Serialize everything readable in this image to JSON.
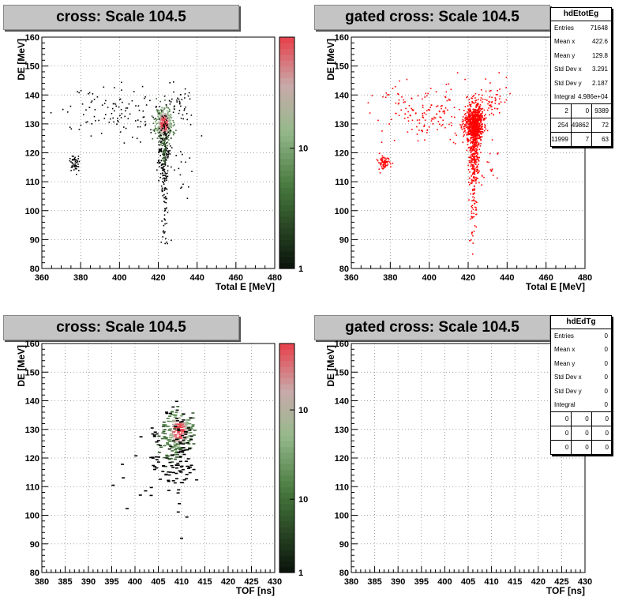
{
  "chart_data": [
    {
      "type": "heatmap",
      "title": "cross: Scale 104.5",
      "xlabel": "Total E [MeV]",
      "ylabel": "DE [MeV]",
      "xlim": [
        360,
        480
      ],
      "ylim": [
        80,
        160
      ],
      "xticks": [
        "360",
        "380",
        "400",
        "420",
        "440",
        "460",
        "480"
      ],
      "yticks": [
        "80",
        "90",
        "100",
        "110",
        "120",
        "130",
        "140",
        "150",
        "160"
      ],
      "colorbar": {
        "scale": "log",
        "labels": [
          "1",
          "10"
        ]
      },
      "clusters": [
        {
          "x": 423,
          "y": 130,
          "sx": 2.2,
          "sy": 3.0,
          "n": 420,
          "level": 1.0
        },
        {
          "x": 423,
          "y": 121,
          "sx": 1.3,
          "sy": 6,
          "n": 200,
          "level": 0.2
        },
        {
          "x": 423,
          "y": 104,
          "sx": 0.8,
          "sy": 9,
          "n": 60,
          "level": 0.05
        },
        {
          "x": 377,
          "y": 116.5,
          "sx": 1.3,
          "sy": 1.3,
          "n": 45,
          "level": 0.08
        },
        {
          "x": 400,
          "y": 134,
          "sx": 14,
          "sy": 5,
          "n": 120,
          "level": 0.04
        },
        {
          "x": 432,
          "y": 137,
          "sx": 3,
          "sy": 3,
          "n": 35,
          "level": 0.04
        },
        {
          "x": 432,
          "y": 114,
          "sx": 4,
          "sy": 4,
          "n": 15,
          "level": 0.03
        }
      ],
      "grid": true
    },
    {
      "type": "scatter",
      "title": "gated cross: Scale 104.5",
      "xlabel": "Total E [MeV]",
      "ylabel": "DE [MeV]",
      "xlim": [
        360,
        480
      ],
      "ylim": [
        80,
        160
      ],
      "xticks": [
        "360",
        "380",
        "400",
        "420",
        "440",
        "460",
        "480"
      ],
      "yticks": [
        "80",
        "90",
        "100",
        "110",
        "120",
        "130",
        "140",
        "150",
        "160"
      ],
      "color": "#ff0000",
      "clusters": [
        {
          "x": 423,
          "y": 130,
          "sx": 2.4,
          "sy": 3.2,
          "n": 700
        },
        {
          "x": 423,
          "y": 120,
          "sx": 1.4,
          "sy": 6,
          "n": 260
        },
        {
          "x": 423,
          "y": 103,
          "sx": 0.9,
          "sy": 9,
          "n": 70
        },
        {
          "x": 377,
          "y": 116.5,
          "sx": 1.5,
          "sy": 1.4,
          "n": 70
        },
        {
          "x": 400,
          "y": 134,
          "sx": 14,
          "sy": 5,
          "n": 170
        },
        {
          "x": 432,
          "y": 137,
          "sx": 4,
          "sy": 3,
          "n": 60
        },
        {
          "x": 430,
          "y": 114,
          "sx": 4,
          "sy": 4,
          "n": 20
        }
      ],
      "grid": true,
      "stats": {
        "name": "hdEtotEg",
        "rows": [
          {
            "label": "Entries",
            "value": "71648"
          },
          {
            "label": "Mean x",
            "value": "422.6"
          },
          {
            "label": "Mean y",
            "value": "129.8"
          },
          {
            "label": "Std Dev x",
            "value": "3.291"
          },
          {
            "label": "Std Dev y",
            "value": "2.187"
          },
          {
            "label": "Integral",
            "value": "4.986e+04"
          }
        ],
        "grid": [
          [
            "2",
            "0",
            "9389"
          ],
          [
            "254",
            "49862",
            "72"
          ],
          [
            "11999",
            "7",
            "63"
          ]
        ]
      }
    },
    {
      "type": "heatmap",
      "title": "cross: Scale 104.5",
      "xlabel": "TOF [ns]",
      "ylabel": "DE [MeV]",
      "xlim": [
        380,
        430
      ],
      "ylim": [
        80,
        160
      ],
      "xticks": [
        "380",
        "385",
        "390",
        "395",
        "400",
        "405",
        "410",
        "415",
        "420",
        "425",
        "430"
      ],
      "yticks": [
        "80",
        "90",
        "100",
        "110",
        "120",
        "130",
        "140",
        "150",
        "160"
      ],
      "colorbar": {
        "scale": "log",
        "labels": [
          "1",
          "10",
          "10"
        ]
      },
      "clusters": [
        {
          "x": 409.5,
          "y": 129.5,
          "sx": 1.4,
          "sy": 3.5,
          "n": 180,
          "level": 1.0
        },
        {
          "x": 407.5,
          "y": 125,
          "sx": 2.0,
          "sy": 6,
          "n": 90,
          "level": 0.3
        },
        {
          "x": 410,
          "y": 120,
          "sx": 1.2,
          "sy": 10,
          "n": 60,
          "level": 0.05
        },
        {
          "x": 404,
          "y": 117,
          "sx": 4,
          "sy": 5,
          "n": 25,
          "level": 0.04
        }
      ],
      "grid": true
    },
    {
      "type": "scatter",
      "title": "gated cross: Scale 104.5",
      "xlabel": "TOF [ns]",
      "ylabel": "DE [MeV]",
      "xlim": [
        380,
        430
      ],
      "ylim": [
        80,
        160
      ],
      "xticks": [
        "380",
        "385",
        "390",
        "395",
        "400",
        "405",
        "410",
        "415",
        "420",
        "425",
        "430"
      ],
      "yticks": [
        "80",
        "90",
        "100",
        "110",
        "120",
        "130",
        "140",
        "150",
        "160"
      ],
      "color": "#ff0000",
      "clusters": [],
      "grid": true,
      "stats": {
        "name": "hdEdTg",
        "rows": [
          {
            "label": "Entries",
            "value": "0"
          },
          {
            "label": "Mean x",
            "value": "0"
          },
          {
            "label": "Mean y",
            "value": "0"
          },
          {
            "label": "Std Dev x",
            "value": "0"
          },
          {
            "label": "Std Dev y",
            "value": "0"
          },
          {
            "label": "Integral",
            "value": "0"
          }
        ],
        "grid": [
          [
            "0",
            "0",
            "0"
          ],
          [
            "0",
            "0",
            "0"
          ],
          [
            "0",
            "0",
            "0"
          ]
        ]
      }
    }
  ]
}
